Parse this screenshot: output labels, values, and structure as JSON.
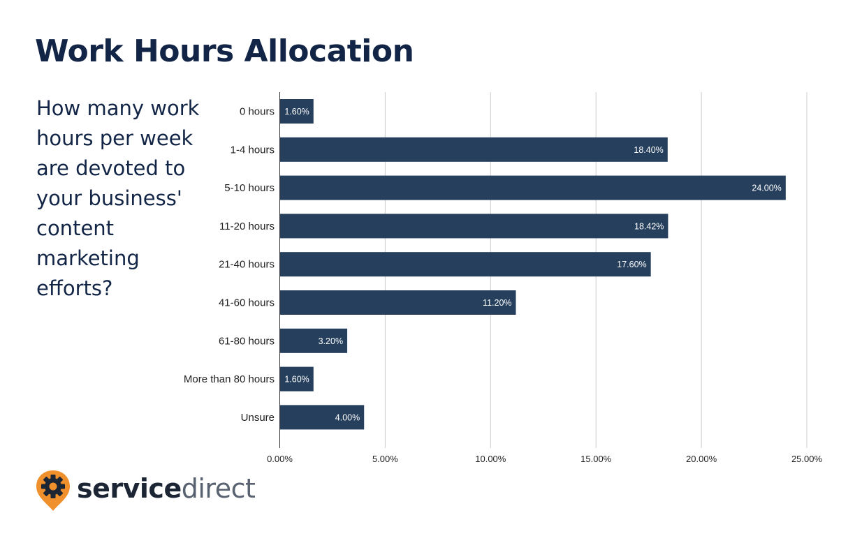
{
  "title": "Work Hours Allocation",
  "question": "How many work hours per week are devoted to your business' content marketing efforts?",
  "logo": {
    "word1": "service",
    "word2": "direct",
    "icon": "gear-pin-icon",
    "pin_color": "#f0902c"
  },
  "colors": {
    "title": "#122546",
    "bar": "#253f5d",
    "bar_label": "#ffffff",
    "grid": "#cccccc"
  },
  "chart_data": {
    "type": "bar",
    "orientation": "horizontal",
    "categories": [
      "0 hours",
      "1-4 hours",
      "5-10 hours",
      "11-20 hours",
      "21-40 hours",
      "41-60 hours",
      "61-80 hours",
      "More than 80 hours",
      "Unsure"
    ],
    "values": [
      1.6,
      18.4,
      24.0,
      18.42,
      17.6,
      11.2,
      3.2,
      1.6,
      4.0
    ],
    "value_labels": [
      "1.60%",
      "18.40%",
      "24.00%",
      "18.42%",
      "17.60%",
      "11.20%",
      "3.20%",
      "1.60%",
      "4.00%"
    ],
    "xlim": [
      0,
      25
    ],
    "xticks": [
      0,
      5,
      10,
      15,
      20,
      25
    ],
    "xtick_labels": [
      "0.00%",
      "5.00%",
      "10.00%",
      "15.00%",
      "20.00%",
      "25.00%"
    ],
    "grid": true,
    "legend": "none",
    "xlabel": "",
    "ylabel": ""
  }
}
